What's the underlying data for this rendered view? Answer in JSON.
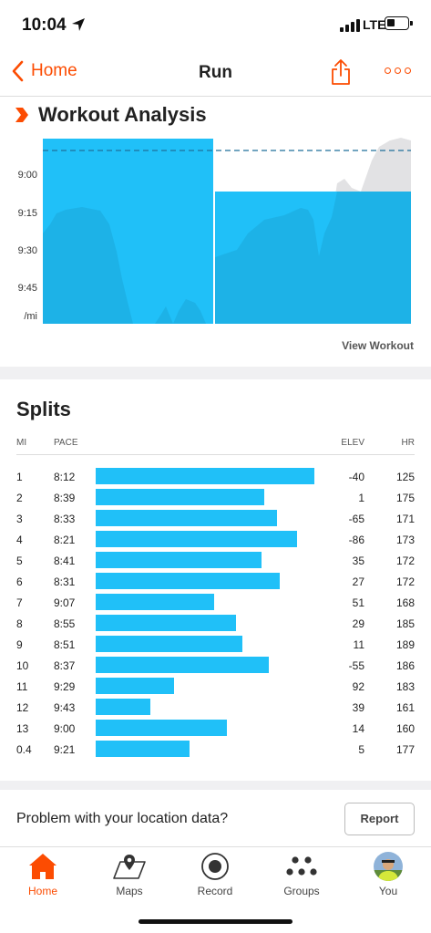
{
  "status_bar": {
    "time": "10:04",
    "network": "LTE"
  },
  "nav": {
    "back_label": "Home",
    "title": "Run"
  },
  "analysis": {
    "title": "Workout Analysis",
    "y_ticks": [
      "9:00",
      "9:15",
      "9:30",
      "9:45",
      "/mi"
    ],
    "view_workout_label": "View Workout",
    "colors": {
      "pace_fill": "#20c0f8",
      "target_line": "#1f6f9a",
      "hr_area": "#e2e2e4"
    }
  },
  "splits": {
    "title": "Splits",
    "headers": {
      "mi": "MI",
      "pace": "PACE",
      "elev": "ELEV",
      "hr": "HR"
    },
    "rows": [
      {
        "mi": "1",
        "pace": "8:12",
        "elev": "-40",
        "hr": "125",
        "bar": 1.0
      },
      {
        "mi": "2",
        "pace": "8:39",
        "elev": "1",
        "hr": "175",
        "bar": 0.77
      },
      {
        "mi": "3",
        "pace": "8:33",
        "elev": "-65",
        "hr": "171",
        "bar": 0.83
      },
      {
        "mi": "4",
        "pace": "8:21",
        "elev": "-86",
        "hr": "173",
        "bar": 0.92
      },
      {
        "mi": "5",
        "pace": "8:41",
        "elev": "35",
        "hr": "172",
        "bar": 0.76
      },
      {
        "mi": "6",
        "pace": "8:31",
        "elev": "27",
        "hr": "172",
        "bar": 0.84
      },
      {
        "mi": "7",
        "pace": "9:07",
        "elev": "51",
        "hr": "168",
        "bar": 0.54
      },
      {
        "mi": "8",
        "pace": "8:55",
        "elev": "29",
        "hr": "185",
        "bar": 0.64
      },
      {
        "mi": "9",
        "pace": "8:51",
        "elev": "11",
        "hr": "189",
        "bar": 0.67
      },
      {
        "mi": "10",
        "pace": "8:37",
        "elev": "-55",
        "hr": "186",
        "bar": 0.79
      },
      {
        "mi": "11",
        "pace": "9:29",
        "elev": "92",
        "hr": "183",
        "bar": 0.36
      },
      {
        "mi": "12",
        "pace": "9:43",
        "elev": "39",
        "hr": "161",
        "bar": 0.25
      },
      {
        "mi": "13",
        "pace": "9:00",
        "elev": "14",
        "hr": "160",
        "bar": 0.6
      },
      {
        "mi": "0.4",
        "pace": "9:21",
        "elev": "5",
        "hr": "177",
        "bar": 0.43
      }
    ]
  },
  "location_prompt": {
    "text": "Problem with your location data?",
    "button": "Report"
  },
  "tabs": [
    {
      "label": "Home",
      "icon": "home-icon",
      "active": true
    },
    {
      "label": "Maps",
      "icon": "map-icon",
      "active": false
    },
    {
      "label": "Record",
      "icon": "record-icon",
      "active": false
    },
    {
      "label": "Groups",
      "icon": "groups-icon",
      "active": false
    },
    {
      "label": "You",
      "icon": "avatar-icon",
      "active": false
    }
  ],
  "colors": {
    "accent": "#fc4c02",
    "bar": "#20c0f8"
  }
}
